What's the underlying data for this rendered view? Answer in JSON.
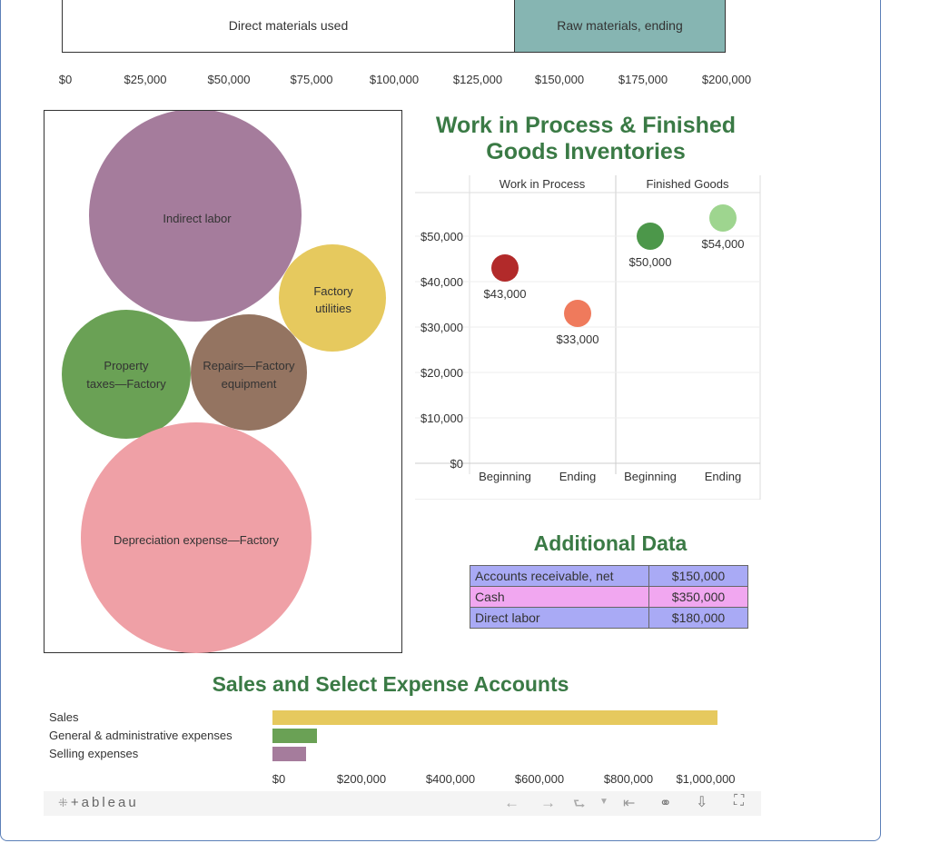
{
  "top_bar": {
    "segments": [
      {
        "label": "Direct materials used",
        "color": "#ffffff"
      },
      {
        "label": "Raw materials, ending",
        "color": "#86b5b2"
      }
    ],
    "axis_ticks": [
      "$0",
      "$25,000",
      "$50,000",
      "$75,000",
      "$100,000",
      "$125,000",
      "$150,000",
      "$175,000",
      "$200,000"
    ]
  },
  "bubbles": {
    "items": [
      {
        "label": "Indirect labor",
        "color": "#a57c9c"
      },
      {
        "label": "Factory utilities",
        "color": "#e6c95e"
      },
      {
        "label": "Property taxes—Factory",
        "color": "#6aa155"
      },
      {
        "label": "Repairs—Factory equipment",
        "color": "#947461"
      },
      {
        "label": "Depreciation expense—Factory",
        "color": "#efa0a6"
      }
    ]
  },
  "inventory_chart": {
    "title": "Work in Process & Finished Goods Inventories",
    "panels": [
      "Work in Process",
      "Finished Goods"
    ],
    "yticks": [
      "$50,000",
      "$40,000",
      "$30,000",
      "$20,000",
      "$10,000",
      "$0"
    ],
    "xticks": [
      "Beginning",
      "Ending",
      "Beginning",
      "Ending"
    ]
  },
  "additional": {
    "title": "Additional Data",
    "rows": [
      {
        "label": "Accounts receivable, net",
        "value": "$150,000",
        "color": "#a9aaf5"
      },
      {
        "label": "Cash",
        "value": "$350,000",
        "color": "#f1a7f0"
      },
      {
        "label": "Direct labor",
        "value": "$180,000",
        "color": "#a9aaf5"
      }
    ]
  },
  "sales_chart": {
    "title": "Sales and Select Expense Accounts",
    "xticks": [
      "$0",
      "$200,000",
      "$400,000",
      "$600,000",
      "$800,000",
      "$1,000,000"
    ]
  },
  "footer": {
    "brand": "+ableau"
  },
  "chart_data": [
    {
      "type": "bar",
      "categories": [
        "Direct materials used",
        "Raw materials, ending"
      ],
      "values": [
        137000,
        63000
      ],
      "stacked": true,
      "xlim": [
        0,
        200000
      ]
    },
    {
      "type": "bubble",
      "categories": [
        "Indirect labor",
        "Factory utilities",
        "Property taxes—Factory",
        "Repairs—Factory equipment",
        "Depreciation expense—Factory"
      ],
      "relative_sizes": [
        1.0,
        0.5,
        0.6,
        0.55,
        1.1
      ]
    },
    {
      "type": "scatter",
      "title": "Work in Process & Finished Goods Inventories",
      "panels": [
        "Work in Process",
        "Finished Goods"
      ],
      "x": [
        "Beginning",
        "Ending"
      ],
      "series": [
        {
          "panel": "Work in Process",
          "values": [
            43000,
            33000
          ],
          "labels": [
            "$43,000",
            "$33,000"
          ],
          "colors": [
            "#b22a2a",
            "#ef7a5c"
          ]
        },
        {
          "panel": "Finished Goods",
          "values": [
            50000,
            54000
          ],
          "labels": [
            "$50,000",
            "$54,000"
          ],
          "colors": [
            "#4c974a",
            "#9ed58f"
          ]
        }
      ],
      "ylim": [
        0,
        60000
      ]
    },
    {
      "type": "bar",
      "orientation": "horizontal",
      "title": "Sales and Select Expense Accounts",
      "categories": [
        "Sales",
        "General & administrative expenses",
        "Selling expenses"
      ],
      "values": [
        1000000,
        100000,
        75000
      ],
      "colors": [
        "#e6c95e",
        "#6aa155",
        "#a57c9c"
      ],
      "xlim": [
        0,
        1000000
      ]
    }
  ]
}
